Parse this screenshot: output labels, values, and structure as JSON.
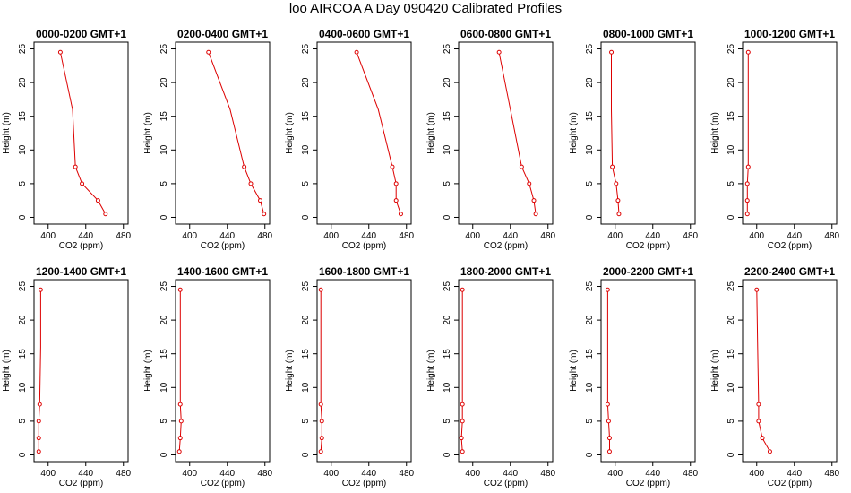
{
  "title": "loo AIRCOA A  Day 090420  Calibrated Profiles",
  "colors": {
    "series": "#dd0000",
    "axis": "#000000"
  },
  "chart_data": [
    {
      "type": "line",
      "title": "0000-0200 GMT+1",
      "xlabel": "CO2 (ppm)",
      "ylabel": "Height (m)",
      "xlim": [
        385,
        485
      ],
      "ylim": [
        -1,
        26
      ],
      "xticks": [
        400,
        440,
        480
      ],
      "yticks": [
        0,
        5,
        10,
        15,
        20,
        25
      ],
      "series": [
        {
          "x": [
            461,
            453,
            436,
            429,
            426,
            413
          ],
          "y": [
            0.5,
            2.5,
            5,
            7.5,
            16,
            24.5
          ]
        }
      ]
    },
    {
      "type": "line",
      "title": "0200-0400 GMT+1",
      "xlabel": "CO2 (ppm)",
      "ylabel": "Height (m)",
      "xlim": [
        385,
        485
      ],
      "ylim": [
        -1,
        26
      ],
      "xticks": [
        400,
        440,
        480
      ],
      "yticks": [
        0,
        5,
        10,
        15,
        20,
        25
      ],
      "series": [
        {
          "x": [
            479,
            475,
            465,
            458,
            443,
            420
          ],
          "y": [
            0.5,
            2.5,
            5,
            7.5,
            16,
            24.5
          ]
        }
      ]
    },
    {
      "type": "line",
      "title": "0400-0600 GMT+1",
      "xlabel": "CO2 (ppm)",
      "ylabel": "Height (m)",
      "xlim": [
        385,
        485
      ],
      "ylim": [
        -1,
        26
      ],
      "xticks": [
        400,
        440,
        480
      ],
      "yticks": [
        0,
        5,
        10,
        15,
        20,
        25
      ],
      "series": [
        {
          "x": [
            474,
            469,
            469,
            465,
            450,
            427
          ],
          "y": [
            0.5,
            2.5,
            5,
            7.5,
            16,
            24.5
          ]
        }
      ]
    },
    {
      "type": "line",
      "title": "0600-0800 GMT+1",
      "xlabel": "CO2 (ppm)",
      "ylabel": "Height (m)",
      "xlim": [
        385,
        485
      ],
      "ylim": [
        -1,
        26
      ],
      "xticks": [
        400,
        440,
        480
      ],
      "yticks": [
        0,
        5,
        10,
        15,
        20,
        25
      ],
      "series": [
        {
          "x": [
            467,
            465,
            460,
            452,
            440,
            428
          ],
          "y": [
            0.5,
            2.5,
            5,
            7.5,
            16,
            24.5
          ]
        }
      ]
    },
    {
      "type": "line",
      "title": "0800-1000 GMT+1",
      "xlabel": "CO2 (ppm)",
      "ylabel": "Height (m)",
      "xlim": [
        385,
        485
      ],
      "ylim": [
        -1,
        26
      ],
      "xticks": [
        400,
        440,
        480
      ],
      "yticks": [
        0,
        5,
        10,
        15,
        20,
        25
      ],
      "series": [
        {
          "x": [
            404,
            403,
            401,
            397,
            396,
            396
          ],
          "y": [
            0.5,
            2.5,
            5,
            7.5,
            16,
            24.5
          ]
        }
      ]
    },
    {
      "type": "line",
      "title": "1000-1200 GMT+1",
      "xlabel": "CO2 (ppm)",
      "ylabel": "Height (m)",
      "xlim": [
        385,
        485
      ],
      "ylim": [
        -1,
        26
      ],
      "xticks": [
        400,
        440,
        480
      ],
      "yticks": [
        0,
        5,
        10,
        15,
        20,
        25
      ],
      "series": [
        {
          "x": [
            390,
            390,
            390,
            391,
            391,
            391
          ],
          "y": [
            0.5,
            2.5,
            5,
            7.5,
            16,
            24.5
          ]
        }
      ]
    },
    {
      "type": "line",
      "title": "1200-1400 GMT+1",
      "xlabel": "CO2 (ppm)",
      "ylabel": "Height (m)",
      "xlim": [
        385,
        485
      ],
      "ylim": [
        -1,
        26
      ],
      "xticks": [
        400,
        440,
        480
      ],
      "yticks": [
        0,
        5,
        10,
        15,
        20,
        25
      ],
      "series": [
        {
          "x": [
            390,
            390,
            390,
            391,
            392,
            392
          ],
          "y": [
            0.5,
            2.5,
            5,
            7.5,
            16,
            24.5
          ]
        }
      ]
    },
    {
      "type": "line",
      "title": "1400-1600 GMT+1",
      "xlabel": "CO2 (ppm)",
      "ylabel": "Height (m)",
      "xlim": [
        385,
        485
      ],
      "ylim": [
        -1,
        26
      ],
      "xticks": [
        400,
        440,
        480
      ],
      "yticks": [
        0,
        5,
        10,
        15,
        20,
        25
      ],
      "series": [
        {
          "x": [
            389,
            390,
            391,
            390,
            390,
            390
          ],
          "y": [
            0.5,
            2.5,
            5,
            7.5,
            16,
            24.5
          ]
        }
      ]
    },
    {
      "type": "line",
      "title": "1600-1800 GMT+1",
      "xlabel": "CO2 (ppm)",
      "ylabel": "Height (m)",
      "xlim": [
        385,
        485
      ],
      "ylim": [
        -1,
        26
      ],
      "xticks": [
        400,
        440,
        480
      ],
      "yticks": [
        0,
        5,
        10,
        15,
        20,
        25
      ],
      "series": [
        {
          "x": [
            389,
            390,
            390,
            389,
            389,
            389
          ],
          "y": [
            0.5,
            2.5,
            5,
            7.5,
            16,
            24.5
          ]
        }
      ]
    },
    {
      "type": "line",
      "title": "1800-2000 GMT+1",
      "xlabel": "CO2 (ppm)",
      "ylabel": "Height (m)",
      "xlim": [
        385,
        485
      ],
      "ylim": [
        -1,
        26
      ],
      "xticks": [
        400,
        440,
        480
      ],
      "yticks": [
        0,
        5,
        10,
        15,
        20,
        25
      ],
      "series": [
        {
          "x": [
            389,
            388,
            389,
            389,
            389,
            389
          ],
          "y": [
            0.5,
            2.5,
            5,
            7.5,
            16,
            24.5
          ]
        }
      ]
    },
    {
      "type": "line",
      "title": "2000-2200 GMT+1",
      "xlabel": "CO2 (ppm)",
      "ylabel": "Height (m)",
      "xlim": [
        385,
        485
      ],
      "ylim": [
        -1,
        26
      ],
      "xticks": [
        400,
        440,
        480
      ],
      "yticks": [
        0,
        5,
        10,
        15,
        20,
        25
      ],
      "series": [
        {
          "x": [
            394,
            394,
            393,
            392,
            392,
            392
          ],
          "y": [
            0.5,
            2.5,
            5,
            7.5,
            16,
            24.5
          ]
        }
      ]
    },
    {
      "type": "line",
      "title": "2200-2400 GMT+1",
      "xlabel": "CO2 (ppm)",
      "ylabel": "Height (m)",
      "xlim": [
        385,
        485
      ],
      "ylim": [
        -1,
        26
      ],
      "xticks": [
        400,
        440,
        480
      ],
      "yticks": [
        0,
        5,
        10,
        15,
        20,
        25
      ],
      "series": [
        {
          "x": [
            414,
            406,
            402,
            402,
            401,
            400
          ],
          "y": [
            0.5,
            2.5,
            5,
            7.5,
            16,
            24.5
          ]
        }
      ]
    }
  ]
}
